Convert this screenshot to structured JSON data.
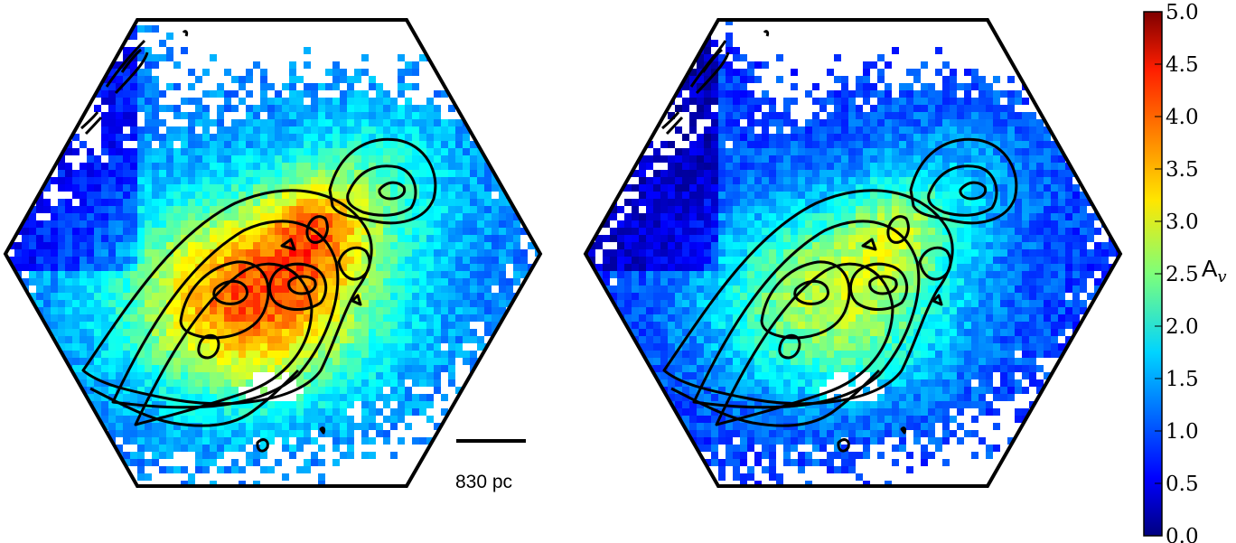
{
  "figure": {
    "panels": [
      {
        "name": "left-extinction-map",
        "contour_color": "#000000",
        "outline_color": "#000000"
      },
      {
        "name": "right-extinction-map",
        "contour_color": "#000000",
        "outline_color": "#000000"
      }
    ],
    "scale_bar": {
      "label": "830 pc"
    },
    "colorbar": {
      "colormap": "jet",
      "min": 0.0,
      "max": 5.0,
      "ticks": [
        "0.0",
        "0.5",
        "1.0",
        "1.5",
        "2.0",
        "2.5",
        "3.0",
        "3.5",
        "4.0",
        "4.5",
        "5.0"
      ],
      "label_main": "A",
      "label_sub": "v"
    }
  }
}
